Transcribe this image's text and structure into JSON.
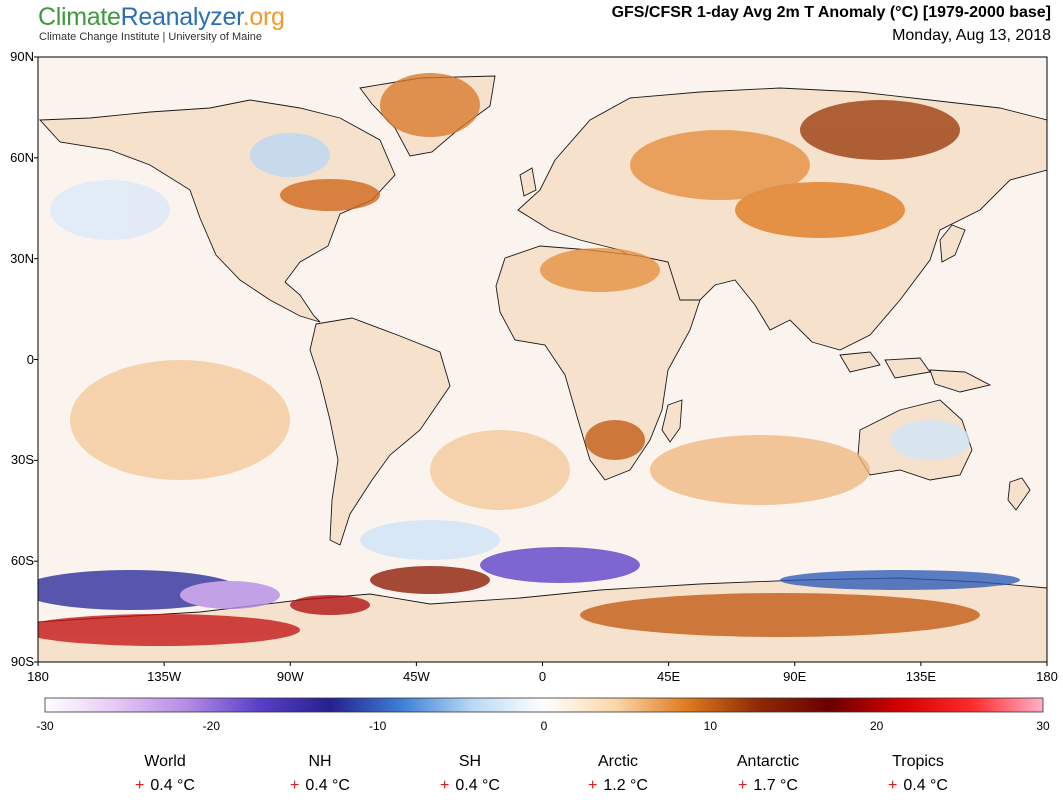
{
  "brand": {
    "part1": "Climate",
    "part2": "Reanalyzer",
    "part3": ".org",
    "subtitle": "Climate Change Institute | University of Maine"
  },
  "header": {
    "title": "GFS/CFSR 1-day Avg 2m T Anomaly (°C) [1979-2000 base]",
    "date": "Monday, Aug 13, 2018"
  },
  "map": {
    "projection": "equirectangular",
    "lat_labels": [
      "90N",
      "60N",
      "30N",
      "0",
      "30S",
      "60S",
      "90S"
    ],
    "lon_labels": [
      "180",
      "135W",
      "90W",
      "45W",
      "0",
      "45E",
      "90E",
      "135E",
      "180"
    ],
    "ocean_color": "#fbf4ee",
    "land_color": "#f6e1cc"
  },
  "colorbar": {
    "ticks": [
      "-30",
      "-20",
      "-10",
      "0",
      "10",
      "20",
      "30"
    ],
    "range": [
      -30,
      30
    ],
    "stops": [
      "#ffffff",
      "#e6c8f5",
      "#b48ae6",
      "#5a3fc8",
      "#26208f",
      "#3d7fd6",
      "#b9d9f5",
      "#ffffff",
      "#fbd7a8",
      "#e07a20",
      "#8e2a05",
      "#6b0000",
      "#d40000",
      "#ff2a2a",
      "#ffb0c8"
    ]
  },
  "stats": [
    {
      "region": "World",
      "sign": "+",
      "value": "0.4 °C"
    },
    {
      "region": "NH",
      "sign": "+",
      "value": "0.4 °C"
    },
    {
      "region": "SH",
      "sign": "+",
      "value": "0.4 °C"
    },
    {
      "region": "Arctic",
      "sign": "+",
      "value": "1.2 °C"
    },
    {
      "region": "Antarctic",
      "sign": "+",
      "value": "1.7 °C"
    },
    {
      "region": "Tropics",
      "sign": "+",
      "value": "0.4 °C"
    }
  ]
}
